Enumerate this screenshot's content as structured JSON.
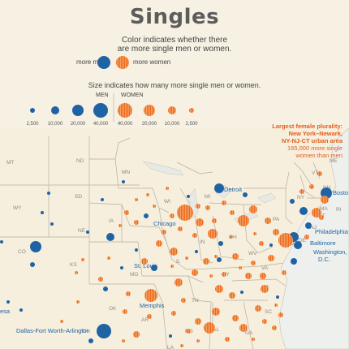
{
  "title": "Singles",
  "legend": {
    "color_line1": "Color indicates whether there",
    "color_line2": "are more single men or women.",
    "more_men": "more men",
    "more_women": "more women",
    "size_line": "Size indicates how many more single men or women.",
    "men_label": "MEN",
    "women_label": "WOMEN",
    "sizes": [
      "2,500",
      "10,000",
      "20,000",
      "40,000",
      "40,000",
      "20,000",
      "10,000",
      "2,500"
    ]
  },
  "annotation": {
    "line1": "Largest female plurality:",
    "line2": "New York–Newark,",
    "line3": "NY-NJ-CT urban area",
    "line4": "165,000 more single",
    "line5": "women than men"
  },
  "colors": {
    "men": "#1f63a4",
    "women": "#ee6a1d",
    "land": "#f6efdd",
    "border": "#b7ada0",
    "water": "#e9ecec"
  },
  "states": [
    "MT",
    "ND",
    "MN",
    "SD",
    "WY",
    "WI",
    "MI",
    "IA",
    "NE",
    "IL",
    "IN",
    "OH",
    "PA",
    "NY",
    "VT",
    "NH",
    "ME",
    "MA",
    "RI",
    "CT",
    "NJ",
    "DE",
    "MD",
    "KS",
    "MO",
    "KY",
    "WV",
    "VA",
    "OK",
    "AR",
    "TN",
    "NC",
    "SC",
    "GA",
    "AL",
    "MS",
    "TX",
    "LA",
    "CO"
  ],
  "cities": {
    "detroit": "Detroit",
    "chicago": "Chicago",
    "st_louis": "St. Louis",
    "memphis": "Memphis",
    "dallas": "Dallas-Fort Worth-Arlington",
    "philadelphia": "Philadelphia",
    "baltimore": "Baltimore",
    "washington1": "Washington,",
    "washington2": "D.C.",
    "boston": "Bosto",
    "partial_left": "esa"
  }
}
